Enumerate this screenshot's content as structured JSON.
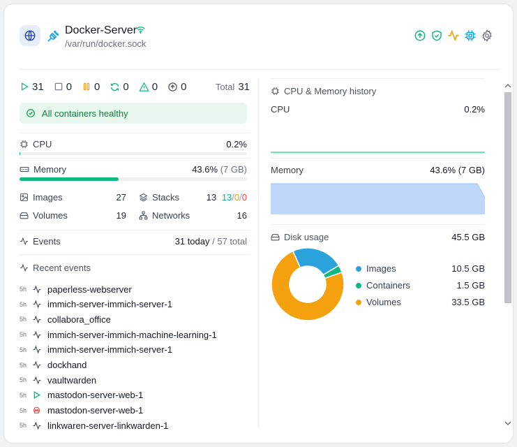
{
  "header": {
    "title": "Docker-Server",
    "socket": "/var/run/docker.sock"
  },
  "stats": {
    "running": "31",
    "stopped": "0",
    "paused": "0",
    "restarting": "0",
    "unhealthy": "0",
    "exited": "0",
    "total_label": "Total",
    "total": "31"
  },
  "health": {
    "message": "All containers healthy"
  },
  "cpu": {
    "label": "CPU",
    "value": "0.2%",
    "fraction": 0.002
  },
  "memory": {
    "label": "Memory",
    "value": "43.6%",
    "detail": "(7 GB)",
    "fraction": 0.436
  },
  "resources": {
    "images_label": "Images",
    "images": "27",
    "stacks_label": "Stacks",
    "stacks": "13",
    "stacks_running": "13",
    "stacks_partial": "0",
    "stacks_stopped": "0",
    "volumes_label": "Volumes",
    "volumes": "19",
    "networks_label": "Networks",
    "networks": "16"
  },
  "events": {
    "label": "Events",
    "today": "31 today",
    "total": "/ 57 total"
  },
  "recent": {
    "title": "Recent events",
    "items": [
      {
        "time": "5h",
        "icon": "activity-icon",
        "name": "paperless-webserver"
      },
      {
        "time": "5h",
        "icon": "activity-icon",
        "name": "immich-server-immich-server-1"
      },
      {
        "time": "5h",
        "icon": "activity-icon",
        "name": "collabora_office"
      },
      {
        "time": "5h",
        "icon": "activity-icon",
        "name": "immich-server-immich-machine-learning-1"
      },
      {
        "time": "5h",
        "icon": "activity-icon",
        "name": "immich-server-immich-server-1"
      },
      {
        "time": "5h",
        "icon": "activity-icon",
        "name": "dockhand"
      },
      {
        "time": "5h",
        "icon": "activity-icon",
        "name": "vaultwarden"
      },
      {
        "time": "5h",
        "icon": "play-icon",
        "name": "mastodon-server-web-1"
      },
      {
        "time": "5h",
        "icon": "skull-icon",
        "name": "mastodon-server-web-1"
      },
      {
        "time": "5h",
        "icon": "activity-icon",
        "name": "linkwaren-server-linkwarden-1"
      }
    ]
  },
  "history": {
    "title": "CPU & Memory history",
    "cpu_label": "CPU",
    "cpu_value": "0.2%",
    "mem_label": "Memory",
    "mem_value": "43.6% (7 GB)"
  },
  "disk": {
    "title": "Disk usage",
    "total": "45.5 GB",
    "segments": [
      {
        "label": "Images",
        "value": "10.5 GB",
        "gb": 10.5,
        "color": "#2aa3dd"
      },
      {
        "label": "Containers",
        "value": "1.5 GB",
        "gb": 1.5,
        "color": "#10b981"
      },
      {
        "label": "Volumes",
        "value": "33.5 GB",
        "gb": 33.5,
        "color": "#f5a10f"
      }
    ]
  },
  "colors": {
    "green": "#10b981",
    "amber": "#f5a10f",
    "blue": "#2aa3dd",
    "memory_fill": "#bfd7fb"
  }
}
